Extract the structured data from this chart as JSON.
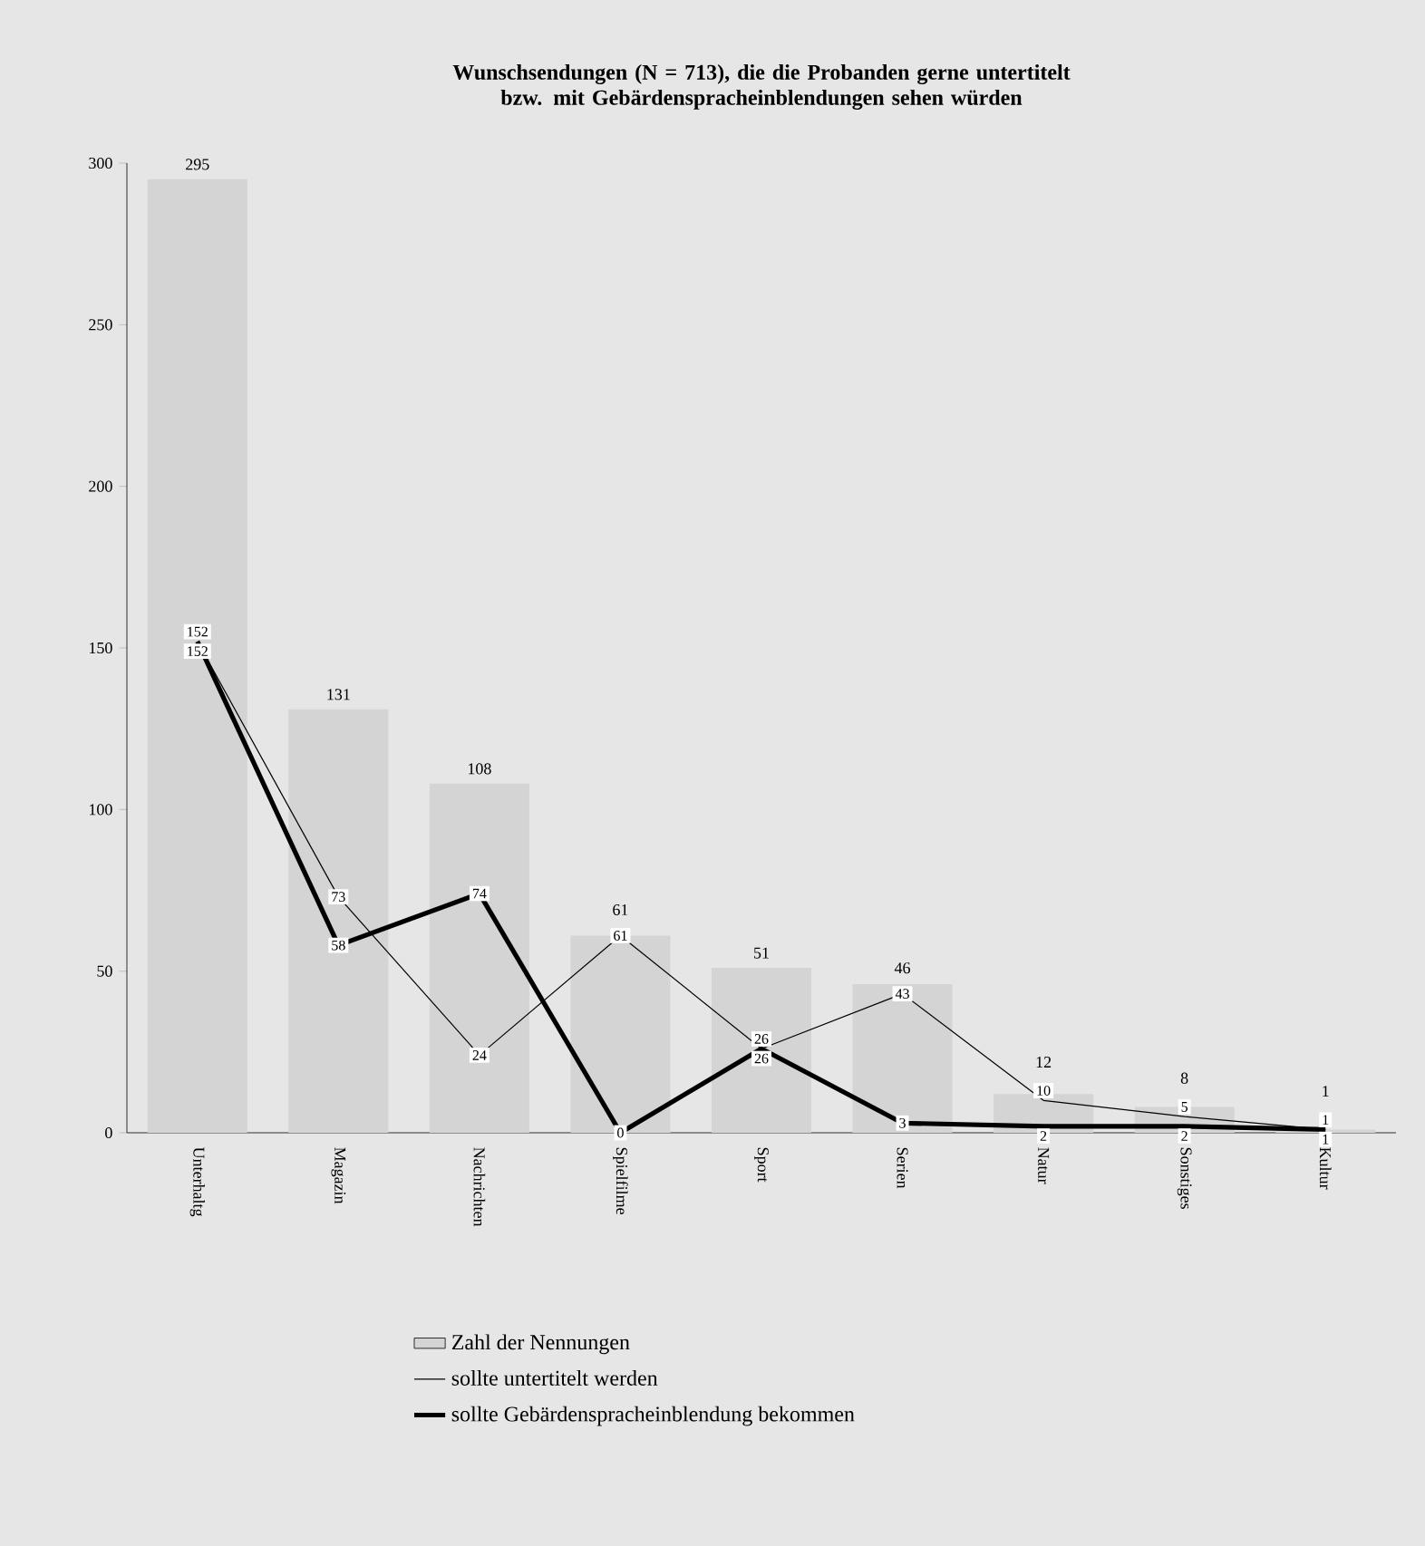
{
  "chart_data": {
    "type": "bar",
    "title": "Wunschsendungen (N = 713), die die Probanden gerne untertitelt bzw. mit Gebärdenspracheinblendungen sehen würden",
    "categories": [
      "Unterhaltg",
      "Magazin",
      "Nachrichten",
      "Spielfilme",
      "Sport",
      "Serien",
      "Natur",
      "Sonstiges",
      "Kultur"
    ],
    "series": [
      {
        "name": "Zahl der Nennungen",
        "color": "#d4d4d4",
        "values": [
          295,
          131,
          108,
          61,
          51,
          46,
          12,
          8,
          1
        ]
      },
      {
        "name": "sollte untertitelt werden",
        "type": "line",
        "color": "#000000",
        "values": [
          152,
          73,
          24,
          61,
          26,
          43,
          10,
          5,
          1
        ]
      },
      {
        "name": "sollte Gebärdenspracheinblendung bekommen",
        "type": "line",
        "color": "#000000",
        "values": [
          152,
          58,
          74,
          0,
          26,
          3,
          2,
          2,
          1
        ]
      }
    ],
    "ylim": [
      0,
      300
    ],
    "yticks": [
      0,
      50,
      100,
      150,
      200,
      250,
      300
    ],
    "data_labels": true,
    "legend": "bottom"
  }
}
